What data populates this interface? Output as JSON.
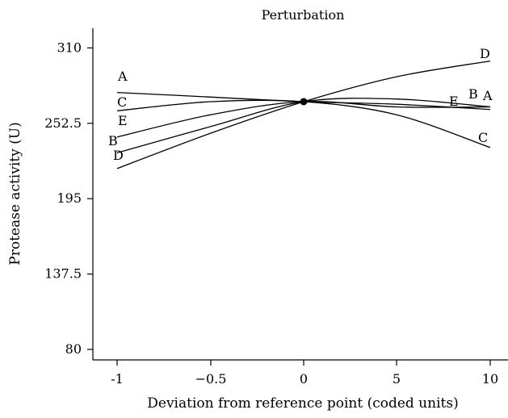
{
  "chart_data": {
    "type": "line",
    "title": "Perturbation",
    "xlabel": "Deviation from reference point (coded units)",
    "ylabel": "Protease activity (U)",
    "x": [
      -1,
      -0.5,
      0,
      5,
      10
    ],
    "x_ticks": [
      "-1",
      "−0.5",
      "0",
      "5",
      "10"
    ],
    "y_ticks": [
      {
        "value": 80,
        "label": "80"
      },
      {
        "value": 137.5,
        "label": "137.5"
      },
      {
        "value": 195,
        "label": "195"
      },
      {
        "value": 252.5,
        "label": "252.5"
      },
      {
        "value": 310,
        "label": "310"
      }
    ],
    "ylim": [
      72,
      325
    ],
    "grid": false,
    "reference_point": {
      "x": 0,
      "y": 269
    },
    "series": [
      {
        "name": "A",
        "values": [
          276,
          272.5,
          269,
          267,
          263
        ]
      },
      {
        "name": "B",
        "values": [
          230,
          250,
          269,
          271,
          265
        ]
      },
      {
        "name": "C",
        "values": [
          262,
          269,
          269,
          259,
          234
        ]
      },
      {
        "name": "D",
        "values": [
          218,
          245,
          269,
          288,
          300
        ]
      },
      {
        "name": "E",
        "values": [
          242,
          259,
          269,
          265,
          265
        ]
      }
    ]
  }
}
